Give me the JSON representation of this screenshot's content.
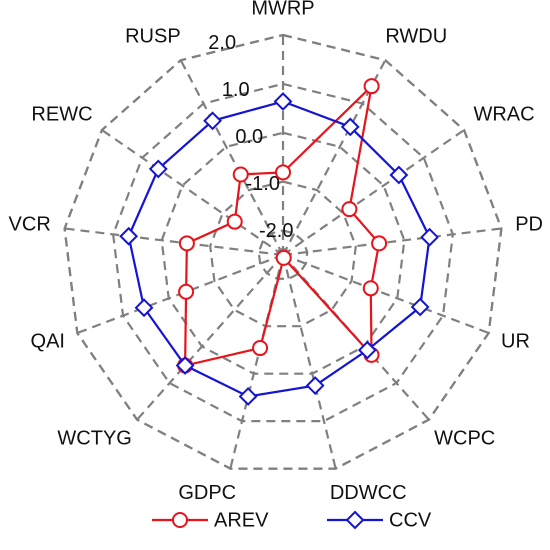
{
  "chart_data": {
    "type": "radar",
    "categories": [
      "MWRP",
      "RWDU",
      "WRAC",
      "PD",
      "UR",
      "WCPC",
      "DDWCC",
      "GDPC",
      "WCTYG",
      "QAI",
      "VCR",
      "REWC",
      "RUSP"
    ],
    "ylim": [
      -2.5,
      2.0
    ],
    "yticks": [
      {
        "value": -2,
        "label": "-2.0"
      },
      {
        "value": -1,
        "label": "-1.0"
      },
      {
        "value": 0,
        "label": "0.0"
      },
      {
        "value": 1,
        "label": "1.0"
      },
      {
        "value": 2,
        "label": "2.0"
      }
    ],
    "grid": true,
    "legend": "bottom",
    "series": [
      {
        "name": "AREV",
        "color": "#e8131b",
        "marker": "circle",
        "values": [
          -0.81,
          1.4,
          -0.85,
          -0.52,
          -0.58,
          0.23,
          -2.44,
          -0.54,
          0.52,
          -0.38,
          -0.52,
          -1.3,
          -0.64
        ]
      },
      {
        "name": "CCV",
        "color": "#1414d4",
        "marker": "diamond",
        "values": [
          0.64,
          0.46,
          0.38,
          0.52,
          0.5,
          0.1,
          0.25,
          0.48,
          0.52,
          0.54,
          0.68,
          0.6,
          0.6
        ]
      }
    ]
  }
}
